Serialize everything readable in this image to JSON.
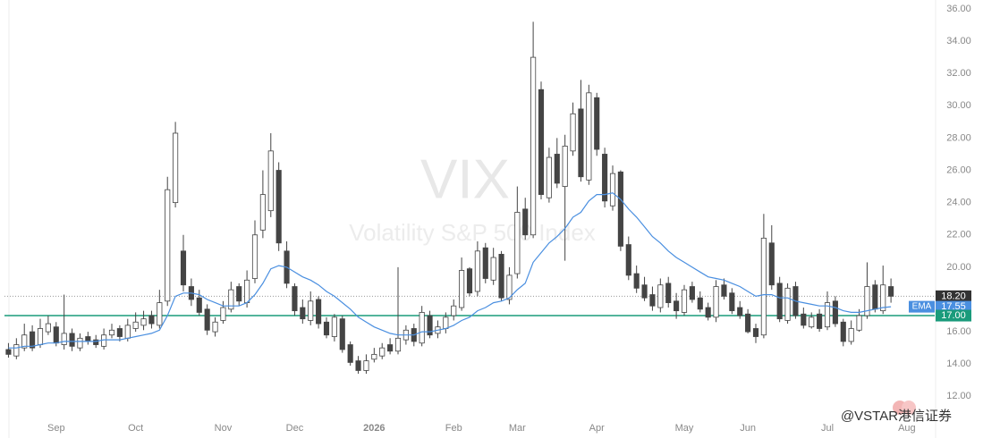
{
  "chart_data": {
    "type": "candlestick",
    "symbol": "VIX",
    "description": "Volatility S&P 500 Index",
    "watermark": "@VSTAR港信证券",
    "categories": [
      null,
      null,
      null,
      null,
      null,
      null,
      "Sep",
      null,
      null,
      null,
      null,
      null,
      null,
      null,
      null,
      null,
      "Oct",
      null,
      null,
      null,
      null,
      null,
      null,
      null,
      null,
      null,
      null,
      "Nov",
      null,
      null,
      null,
      null,
      null,
      null,
      null,
      null,
      "Dec",
      null,
      null,
      null,
      null,
      null,
      null,
      null,
      null,
      null,
      "2026",
      null,
      null,
      null,
      null,
      null,
      null,
      null,
      null,
      null,
      "Feb",
      null,
      null,
      null,
      null,
      null,
      null,
      null,
      "Mar",
      null,
      null,
      null,
      null,
      null,
      null,
      null,
      null,
      null,
      "Apr",
      null,
      null,
      null,
      null,
      null,
      null,
      null,
      null,
      null,
      null,
      "May",
      null,
      null,
      null,
      null,
      null,
      null,
      null,
      "Jun",
      null,
      null,
      null,
      null,
      null,
      null,
      null,
      null,
      null,
      "Jul",
      null,
      null,
      null,
      null,
      null,
      null,
      null,
      null,
      null,
      "Aug",
      null,
      null,
      null
    ],
    "open": [
      14.9,
      14.5,
      15.0,
      16.0,
      15.2,
      16.0,
      16.3,
      15.2,
      15.9,
      15.0,
      15.7,
      15.5,
      15.1,
      15.8,
      16.2,
      15.6,
      16.2,
      16.4,
      17.0,
      16.4,
      17.9,
      24.0,
      21.0,
      18.8,
      18.1,
      17.4,
      16.0,
      16.7,
      17.4,
      18.8,
      17.8,
      19.3,
      22.3,
      23.5,
      26.0,
      21.0,
      18.8,
      17.5,
      16.7,
      18.0,
      16.6,
      15.7,
      16.8,
      15.2,
      14.2,
      13.6,
      14.3,
      14.5,
      15.2,
      14.8,
      15.5,
      16.2,
      15.3,
      17.0,
      15.9,
      16.2,
      17.0,
      17.5,
      19.9,
      18.5,
      21.2,
      19.2,
      20.8,
      18.0,
      19.6,
      23.6,
      22.0,
      31.0,
      24.3,
      27.0,
      25.0,
      27.2,
      29.8,
      25.4,
      30.5,
      27.0,
      23.8,
      25.9,
      21.4,
      19.6,
      18.9,
      18.3,
      17.5,
      19.0,
      17.9,
      17.2,
      18.8,
      18.1,
      17.5,
      16.9,
      18.9,
      18.4,
      17.5,
      17.1,
      16.2,
      15.8,
      21.5,
      19.0,
      16.7,
      18.8,
      17.1,
      16.3,
      17.1,
      16.3,
      17.9,
      16.6,
      15.4,
      16.1,
      17.0,
      18.9,
      17.3,
      18.8,
      null,
      null,
      null,
      null,
      null
    ],
    "high": [
      15.3,
      15.6,
      16.5,
      16.4,
      16.8,
      17.0,
      16.6,
      18.3,
      16.2,
      15.9,
      16.0,
      15.8,
      16.2,
      16.5,
      16.4,
      16.8,
      17.2,
      17.3,
      17.3,
      18.6,
      25.6,
      29.0,
      22.0,
      19.3,
      18.6,
      17.7,
      16.9,
      17.9,
      19.1,
      19.0,
      19.8,
      22.9,
      26.0,
      28.3,
      26.5,
      21.6,
      19.0,
      18.0,
      18.5,
      18.2,
      16.9,
      17.1,
      17.0,
      15.4,
      14.5,
      14.6,
      15.0,
      15.3,
      15.6,
      20.0,
      16.4,
      16.5,
      17.6,
      17.3,
      16.7,
      17.2,
      18.0,
      20.6,
      20.0,
      21.6,
      21.5,
      21.2,
      21.0,
      20.0,
      25.0,
      24.3,
      35.2,
      31.5,
      27.4,
      28.0,
      28.2,
      30.2,
      31.6,
      31.3,
      30.8,
      27.4,
      26.3,
      26.0,
      21.9,
      20.1,
      19.4,
      18.8,
      19.3,
      19.4,
      18.4,
      18.9,
      19.1,
      18.5,
      17.8,
      19.2,
      19.3,
      18.7,
      17.9,
      17.4,
      16.5,
      23.3,
      22.6,
      19.4,
      19.0,
      19.1,
      17.5,
      17.2,
      17.4,
      18.5,
      18.2,
      16.8,
      16.7,
      17.4,
      20.3,
      19.2,
      20.1,
      19.3,
      null,
      null,
      null,
      null,
      null
    ],
    "low": [
      14.4,
      14.3,
      14.8,
      14.8,
      15.0,
      15.8,
      15.1,
      14.9,
      14.8,
      14.8,
      15.2,
      15.0,
      14.9,
      15.6,
      15.4,
      15.4,
      16.0,
      16.1,
      16.2,
      16.2,
      17.6,
      23.7,
      18.5,
      17.6,
      17.0,
      15.8,
      15.7,
      16.5,
      17.2,
      17.6,
      17.5,
      19.0,
      21.8,
      23.1,
      21.0,
      18.7,
      17.0,
      16.5,
      16.4,
      16.2,
      15.6,
      15.4,
      14.7,
      13.9,
      13.4,
      13.4,
      14.1,
      14.3,
      14.6,
      14.6,
      15.2,
      15.1,
      15.1,
      15.6,
      15.6,
      15.9,
      16.7,
      17.3,
      18.2,
      18.2,
      19.0,
      18.9,
      17.9,
      17.7,
      19.3,
      21.7,
      21.8,
      24.2,
      24.0,
      24.9,
      20.4,
      26.9,
      25.3,
      25.1,
      26.9,
      23.7,
      23.5,
      21.0,
      19.2,
      18.4,
      17.9,
      17.3,
      17.2,
      17.5,
      16.8,
      17.0,
      17.8,
      17.2,
      16.7,
      16.6,
      18.0,
      17.1,
      16.8,
      15.9,
      15.3,
      15.6,
      18.6,
      16.6,
      16.5,
      16.8,
      16.2,
      16.2,
      16.0,
      16.1,
      16.3,
      15.1,
      15.2,
      16.0,
      16.8,
      17.2,
      17.1,
      17.8,
      null,
      null,
      null,
      null,
      null
    ],
    "close": [
      14.6,
      15.2,
      15.8,
      15.0,
      16.2,
      16.5,
      15.3,
      15.9,
      15.1,
      15.6,
      15.4,
      15.2,
      15.8,
      16.1,
      15.7,
      16.4,
      16.6,
      16.8,
      16.5,
      17.8,
      24.8,
      28.3,
      18.9,
      18.0,
      17.2,
      16.1,
      16.6,
      17.5,
      18.6,
      17.9,
      19.2,
      22.0,
      24.5,
      27.2,
      21.5,
      19.0,
      17.3,
      16.8,
      17.9,
      16.5,
      15.8,
      16.9,
      14.9,
      14.1,
      13.6,
      14.2,
      14.6,
      15.0,
      14.8,
      15.6,
      16.1,
      15.4,
      17.2,
      15.8,
      16.3,
      16.9,
      17.6,
      19.8,
      18.4,
      21.0,
      19.3,
      20.6,
      18.1,
      19.5,
      23.4,
      22.0,
      33.0,
      24.5,
      26.8,
      25.2,
      27.5,
      29.5,
      25.6,
      30.8,
      27.3,
      24.1,
      25.8,
      21.3,
      19.5,
      18.7,
      18.1,
      17.6,
      18.9,
      17.8,
      17.3,
      18.6,
      18.0,
      17.4,
      16.9,
      18.8,
      18.2,
      17.3,
      17.0,
      16.0,
      15.7,
      21.8,
      18.9,
      16.8,
      18.7,
      17.0,
      16.4,
      16.9,
      16.2,
      17.8,
      16.5,
      15.4,
      16.2,
      17.0,
      18.8,
      17.4,
      18.9,
      18.2,
      null,
      null,
      null,
      null,
      null
    ],
    "up_color": "#ffffff",
    "down_color": "#444444",
    "ema": {
      "name": "EMA",
      "color": "#4a8fe0",
      "last_label": "17.55",
      "values": [
        15.0,
        15.0,
        15.1,
        15.1,
        15.2,
        15.3,
        15.3,
        15.4,
        15.4,
        15.4,
        15.4,
        15.4,
        15.5,
        15.5,
        15.5,
        15.6,
        15.7,
        15.8,
        15.9,
        16.1,
        17.0,
        18.2,
        18.4,
        18.4,
        18.3,
        18.0,
        17.8,
        17.6,
        17.6,
        17.6,
        17.8,
        18.3,
        19.0,
        19.9,
        20.1,
        20.0,
        19.7,
        19.4,
        19.2,
        18.9,
        18.5,
        18.2,
        17.8,
        17.4,
        16.9,
        16.6,
        16.3,
        16.1,
        15.9,
        15.8,
        15.8,
        15.8,
        16.0,
        16.0,
        16.1,
        16.2,
        16.4,
        16.7,
        16.9,
        17.3,
        17.5,
        17.8,
        17.9,
        18.1,
        18.6,
        19.0,
        20.3,
        20.9,
        21.5,
        21.9,
        22.4,
        23.1,
        23.4,
        24.1,
        24.5,
        24.5,
        24.6,
        24.2,
        23.6,
        23.1,
        22.5,
        21.9,
        21.5,
        21.0,
        20.6,
        20.3,
        20.0,
        19.7,
        19.4,
        19.3,
        19.2,
        19.0,
        18.8,
        18.5,
        18.2,
        18.3,
        18.3,
        18.1,
        18.1,
        17.9,
        17.8,
        17.7,
        17.6,
        17.6,
        17.5,
        17.3,
        17.2,
        17.2,
        17.3,
        17.4,
        17.5,
        17.55,
        null,
        null,
        null,
        null,
        null
      ]
    },
    "last_price": {
      "value": 18.2,
      "label": "18.20",
      "color": "#333333"
    },
    "level_line": {
      "value": 17.0,
      "label": "17.00",
      "color": "#1a9b7b"
    },
    "ylim": [
      10.8,
      36.55
    ],
    "yticks": [
      {
        "value": 12,
        "label": "12.00"
      },
      {
        "value": 14,
        "label": "14.00"
      },
      {
        "value": 16,
        "label": "16.00"
      },
      {
        "value": 18,
        "label": "18.00"
      },
      {
        "value": 20,
        "label": "20.00"
      },
      {
        "value": 22,
        "label": "22.00"
      },
      {
        "value": 24,
        "label": "24.00"
      },
      {
        "value": 26,
        "label": "26.00"
      },
      {
        "value": 28,
        "label": "28.00"
      },
      {
        "value": 30,
        "label": "30.00"
      },
      {
        "value": 32,
        "label": "32.00"
      },
      {
        "value": 34,
        "label": "34.00"
      },
      {
        "value": 36,
        "label": "36.00"
      }
    ],
    "grid": false
  }
}
